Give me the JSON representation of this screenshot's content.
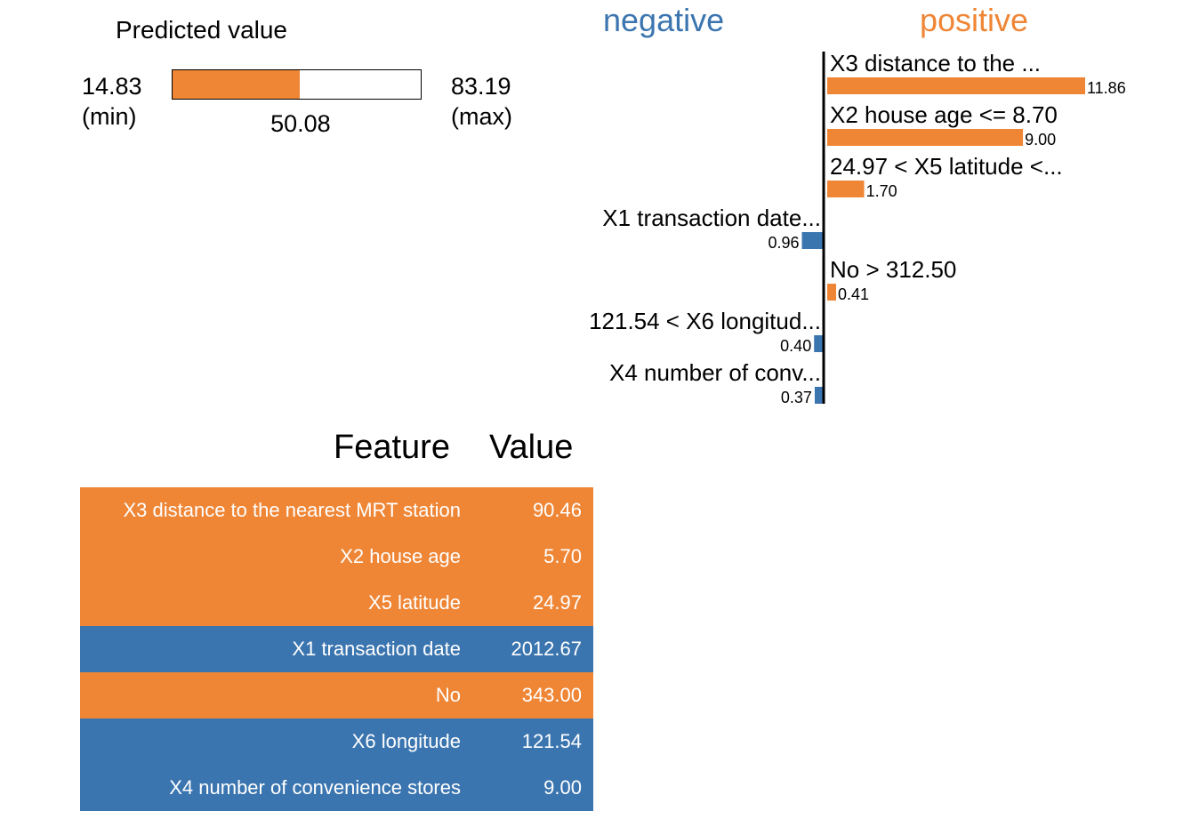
{
  "predicted": {
    "title": "Predicted value",
    "min_value": "14.83",
    "min_label": "(min)",
    "max_value": "83.19",
    "max_label": "(max)",
    "value_text": "50.08",
    "min": 14.83,
    "max": 83.19,
    "value": 50.08,
    "bar_color": "#ef8636"
  },
  "headers": {
    "negative": "negative",
    "positive": "positive"
  },
  "chart_data": {
    "type": "bar",
    "orientation": "horizontal",
    "categories": [
      "X3 distance to the ...",
      "X2 house age <= 8.70",
      "24.97 < X5 latitude <...",
      "X1 transaction date...",
      "No > 312.50",
      "121.54 < X6 longitud...",
      "X4 number of conv..."
    ],
    "values": [
      11.86,
      9.0,
      1.7,
      -0.96,
      0.41,
      -0.4,
      -0.37
    ],
    "value_labels": [
      "11.86",
      "9.00",
      "1.70",
      "0.96",
      "0.41",
      "0.40",
      "0.37"
    ],
    "colors": {
      "positive": "#ef8636",
      "negative": "#3b75af"
    }
  },
  "table": {
    "header_feature": "Feature",
    "header_value": "Value",
    "rows": [
      {
        "feature": "X3 distance to the nearest MRT station",
        "value": "90.46",
        "color": "#ef8636"
      },
      {
        "feature": "X2 house age",
        "value": "5.70",
        "color": "#ef8636"
      },
      {
        "feature": "X5 latitude",
        "value": "24.97",
        "color": "#ef8636"
      },
      {
        "feature": "X1 transaction date",
        "value": "2012.67",
        "color": "#3b75af"
      },
      {
        "feature": "No",
        "value": "343.00",
        "color": "#ef8636"
      },
      {
        "feature": "X6 longitude",
        "value": "121.54",
        "color": "#3b75af"
      },
      {
        "feature": "X4 number of convenience stores",
        "value": "9.00",
        "color": "#3b75af"
      }
    ]
  }
}
